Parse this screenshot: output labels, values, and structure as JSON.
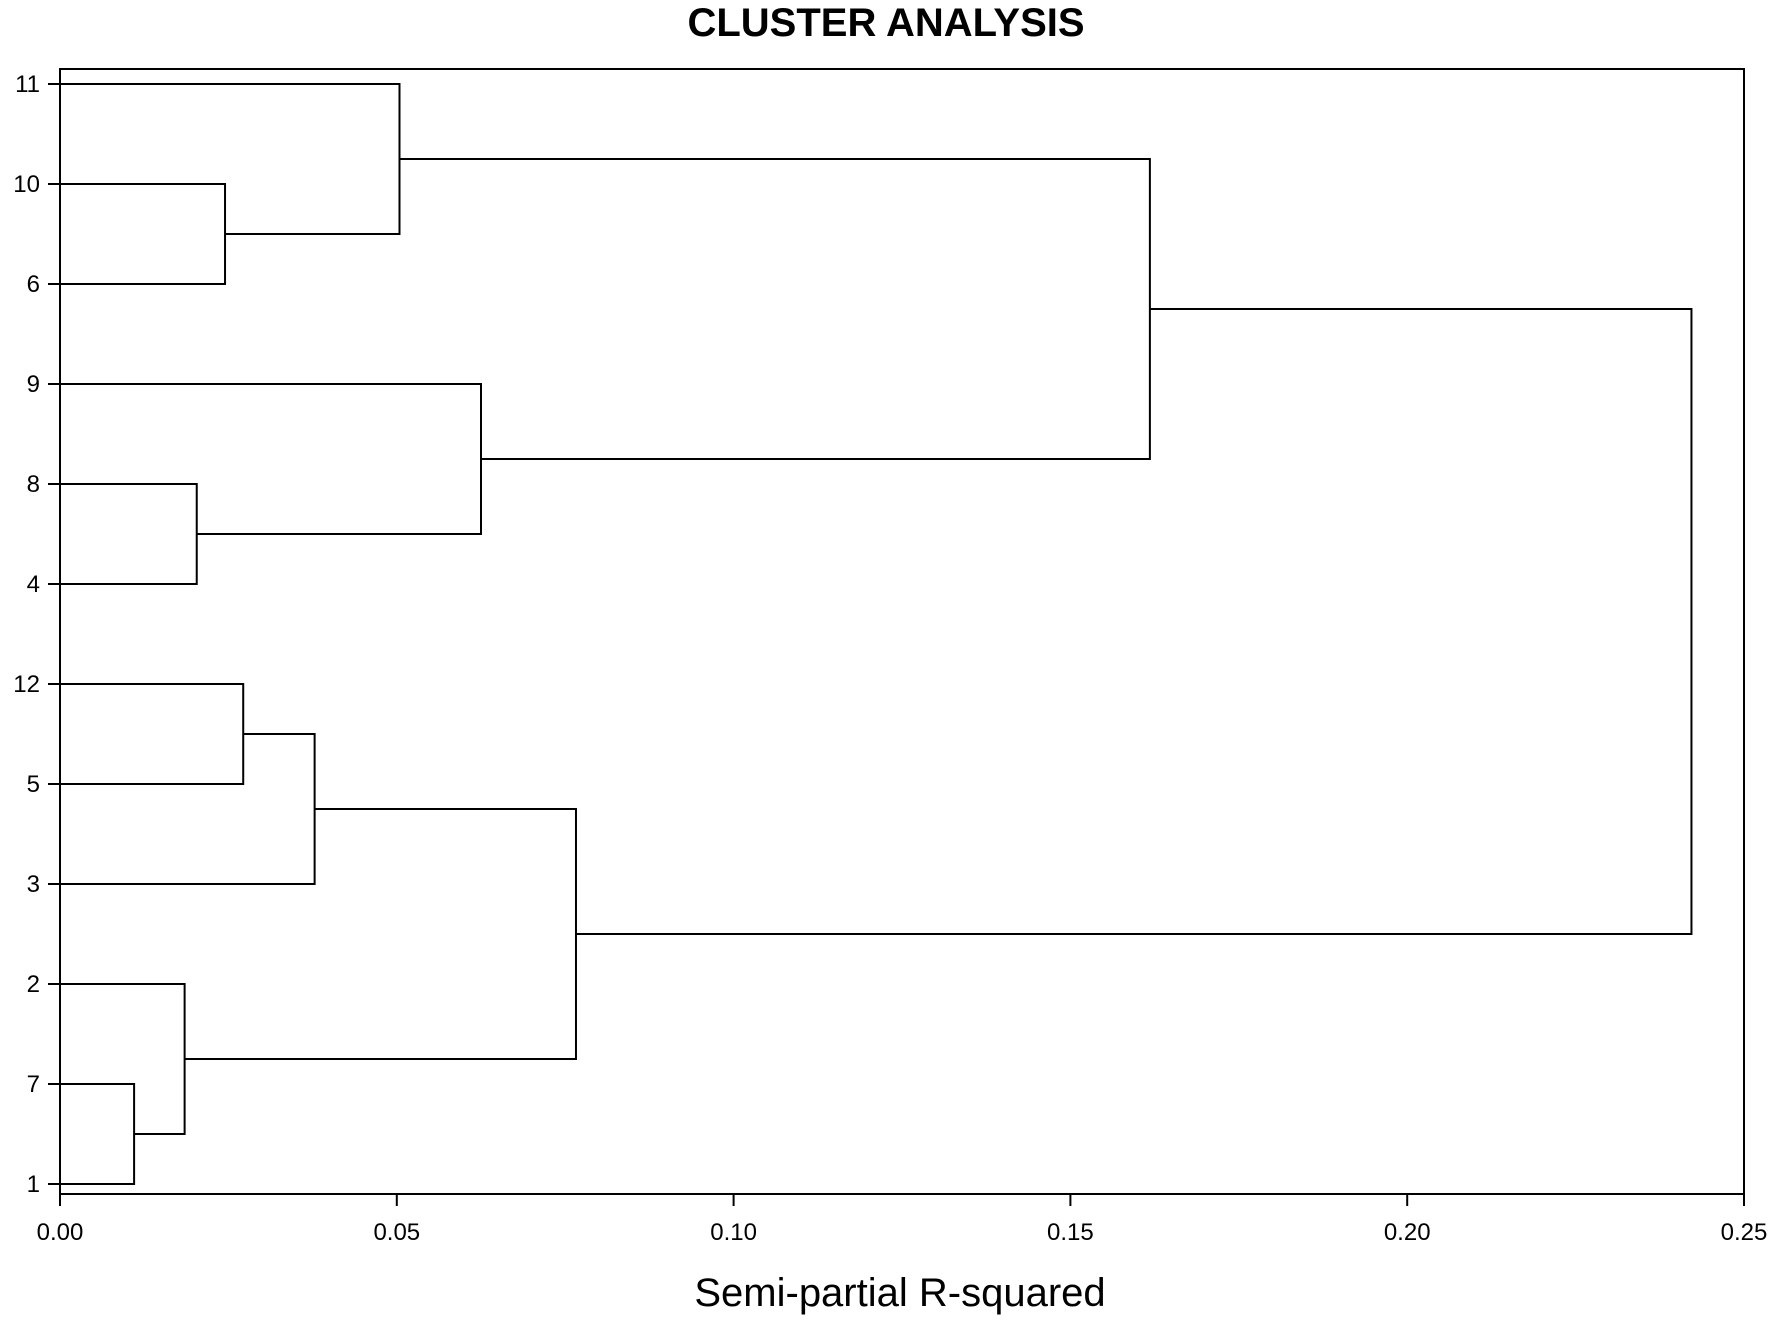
{
  "chart_data": {
    "type": "dendrogram",
    "title": "CLUSTER ANALYSIS",
    "xlabel": "Semi-partial R-squared",
    "ylabel": "",
    "xlim": [
      0,
      0.25
    ],
    "x_ticks": [
      "0.00",
      "0.05",
      "0.10",
      "0.15",
      "0.20",
      "0.25"
    ],
    "x_tick_values": [
      0,
      0.05,
      0.1,
      0.15,
      0.2,
      0.25
    ],
    "leaves": [
      "11",
      "10",
      "6",
      "9",
      "8",
      "4",
      "12",
      "5",
      "3",
      "2",
      "7",
      "1"
    ],
    "merges": [
      {
        "left": "7",
        "right": "1",
        "height": 0.011
      },
      {
        "left": "2",
        "right": "7,1",
        "height": 0.0185
      },
      {
        "left": "8",
        "right": "4",
        "height": 0.0203
      },
      {
        "left": "10",
        "right": "6",
        "height": 0.0245
      },
      {
        "left": "12",
        "right": "5",
        "height": 0.0272
      },
      {
        "left": "12,5",
        "right": "3",
        "height": 0.0378
      },
      {
        "left": "11",
        "right": "10,6",
        "height": 0.0504
      },
      {
        "left": "9",
        "right": "8,4",
        "height": 0.0625
      },
      {
        "left": "12,5,3",
        "right": "2,7,1",
        "height": 0.0766
      },
      {
        "left": "11,10,6",
        "right": "9,8,4",
        "height": 0.1618
      },
      {
        "left": "11,10,6,9,8,4",
        "right": "12,5,3,2,7,1",
        "height": 0.2422
      }
    ],
    "grid": false,
    "legend": "none"
  }
}
